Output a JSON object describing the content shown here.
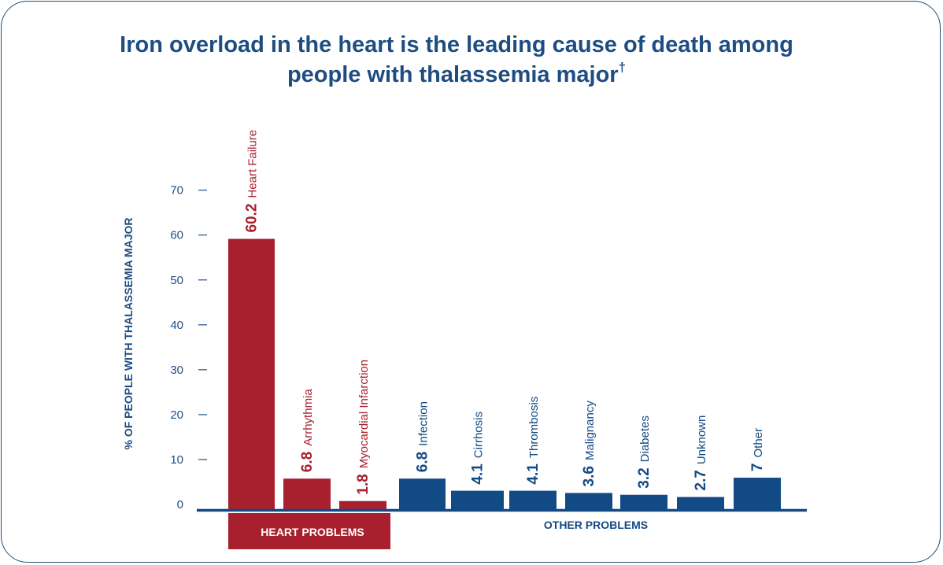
{
  "title_line1": "Iron overload in the heart is the leading cause of death among",
  "title_line2": "people with thalassemia major",
  "title_mark": "†",
  "chart_data": {
    "type": "bar",
    "title": "Iron overload in the heart is the leading cause of death among people with thalassemia major†",
    "ylabel": "% OF PEOPLE WITH THALASSEMIA MAJOR",
    "xlabel": "",
    "ylim": [
      0,
      70
    ],
    "yticks": [
      0,
      10,
      20,
      30,
      40,
      50,
      60,
      70
    ],
    "grid": false,
    "categories": [
      "Heart Failure",
      "Arrhythmia",
      "Myocardial Infarction",
      "Infection",
      "Cirrhosis",
      "Thrombosis",
      "Malignancy",
      "Diabetes",
      "Unknown",
      "Other"
    ],
    "values": [
      60.2,
      6.8,
      1.8,
      6.8,
      4.1,
      4.1,
      3.6,
      3.2,
      2.7,
      7
    ],
    "value_labels": [
      "60.2",
      "6.8",
      "1.8",
      "6.8",
      "4.1",
      "4.1",
      "3.6",
      "3.2",
      "2.7",
      "7"
    ],
    "groups": [
      {
        "name": "HEART PROBLEMS",
        "start": 0,
        "end": 2,
        "color": "#a8202e"
      },
      {
        "name": "OTHER PROBLEMS",
        "start": 3,
        "end": 9,
        "color": "#124a85"
      }
    ]
  },
  "colors": {
    "heart": "#a8202e",
    "other": "#124a85",
    "axis": "#1e4d82",
    "title": "#1e4d82"
  }
}
